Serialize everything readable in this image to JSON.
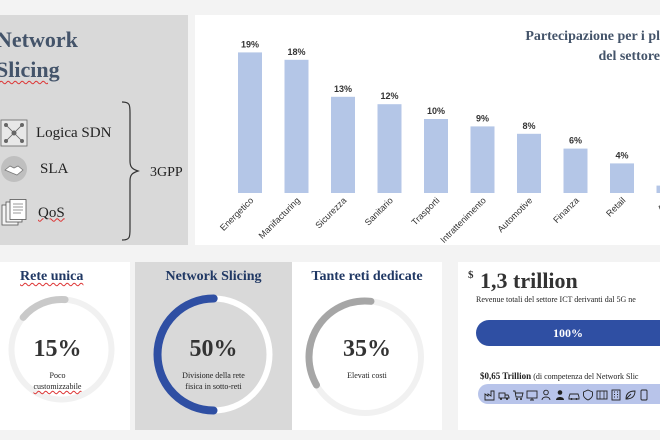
{
  "top_left": {
    "title_line1": "Network",
    "title_line2": "Slicing",
    "items": [
      {
        "label": "Logica SDN",
        "icon": "network-icon"
      },
      {
        "label": "SLA",
        "icon": "handshake-icon"
      },
      {
        "label": "QoS",
        "icon": "documents-icon"
      }
    ],
    "group_label": "3GPP"
  },
  "chart": {
    "title_line1": "Partecipazione per i pl",
    "title_line2": "del settore"
  },
  "chart_data": {
    "type": "bar",
    "categories": [
      "Energetico",
      "Manifacturing",
      "Sicurezza",
      "Sanitario",
      "Trasporti",
      "Intrattenimento",
      "Automotive",
      "Finanza",
      "Retail",
      "Agri"
    ],
    "values": [
      19,
      18,
      13,
      12,
      10,
      9,
      8,
      6,
      4,
      1
    ],
    "value_labels": [
      "19%",
      "18%",
      "13%",
      "12%",
      "10%",
      "9%",
      "8%",
      "6%",
      "4%",
      ""
    ],
    "color": "#b4c6e7",
    "title": "Partecipazione per i pl del settore",
    "ylim": [
      0,
      20
    ],
    "grid": false
  },
  "cards": [
    {
      "title": "Rete unica",
      "percent_label": "15%",
      "percent": 15,
      "desc_line1": "Poco",
      "desc_line2": "customizzabile",
      "color": "#c9c9c9",
      "title_color": "#203864"
    },
    {
      "title": "Network Slicing",
      "percent_label": "50%",
      "percent": 50,
      "desc_line1": "Divisione della rete",
      "desc_line2": "fisica in sotto-reti",
      "color": "#2f4fa3",
      "title_color": "#203864"
    },
    {
      "title": "Tante reti dedicate",
      "percent_label": "35%",
      "percent": 35,
      "desc_line1": "Elevati costi",
      "desc_line2": "",
      "color": "#a6a6a6",
      "title_color": "#203864"
    }
  ],
  "revenue": {
    "currency": "$",
    "amount": "1,3 trillion",
    "description": "Revenue totali del settore ICT derivanti dal 5G ne",
    "bar_label": "100%",
    "bar_percent": 100,
    "ns_amount": "$0,65 Trillion",
    "ns_text": " (di competenza del Network Slic",
    "bar_color": "#2f4fa3",
    "icons_color": "#b8c4ea"
  }
}
